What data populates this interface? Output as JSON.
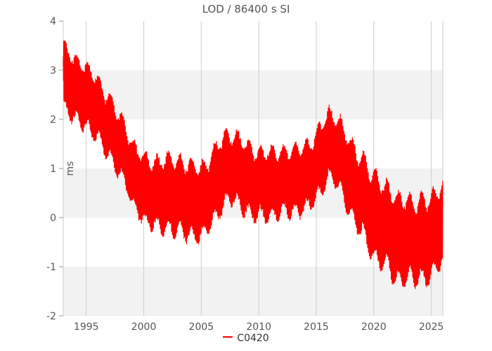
{
  "chart_data": {
    "type": "line",
    "title": "LOD / 86400 s SI",
    "xlabel": "",
    "ylabel": "ms",
    "xlim": [
      1993.0,
      2026.0
    ],
    "ylim": [
      -2,
      4
    ],
    "x_ticks": [
      1995,
      2000,
      2005,
      2010,
      2015,
      2020,
      2025
    ],
    "y_ticks": [
      -2,
      -1,
      0,
      1,
      2,
      3,
      4
    ],
    "grid": true,
    "legend_position": "bottom-center",
    "colors": {
      "series": "#ff0000",
      "band": "#f2f2f2",
      "grid": "#cccccc",
      "axis_text": "#555555"
    },
    "series": [
      {
        "name": "C0420",
        "trend": [
          [
            1993.0,
            2.9
          ],
          [
            1994.0,
            2.5
          ],
          [
            1995.0,
            2.4
          ],
          [
            1996.0,
            2.3
          ],
          [
            1997.0,
            1.9
          ],
          [
            1998.0,
            1.4
          ],
          [
            1999.0,
            0.8
          ],
          [
            2000.0,
            0.6
          ],
          [
            2001.0,
            0.6
          ],
          [
            2002.0,
            0.5
          ],
          [
            2003.0,
            0.3
          ],
          [
            2004.0,
            0.3
          ],
          [
            2005.0,
            0.4
          ],
          [
            2006.0,
            0.7
          ],
          [
            2007.0,
            0.9
          ],
          [
            2008.0,
            0.9
          ],
          [
            2009.0,
            0.8
          ],
          [
            2010.0,
            0.8
          ],
          [
            2011.0,
            0.7
          ],
          [
            2012.0,
            0.6
          ],
          [
            2013.0,
            0.7
          ],
          [
            2014.0,
            0.9
          ],
          [
            2015.0,
            1.1
          ],
          [
            2016.0,
            1.4
          ],
          [
            2017.0,
            1.2
          ],
          [
            2018.0,
            0.8
          ],
          [
            2019.0,
            0.6
          ],
          [
            2020.0,
            0.0
          ],
          [
            2021.0,
            -0.3
          ],
          [
            2022.0,
            -0.5
          ],
          [
            2023.0,
            -0.3
          ],
          [
            2024.0,
            -0.4
          ],
          [
            2025.0,
            -0.5
          ],
          [
            2026.0,
            -0.2
          ]
        ],
        "amplitude": [
          [
            1993.0,
            0.6
          ],
          [
            1998.0,
            0.55
          ],
          [
            2003.0,
            0.7
          ],
          [
            2008.0,
            0.65
          ],
          [
            2013.0,
            0.6
          ],
          [
            2017.0,
            0.65
          ],
          [
            2020.0,
            0.8
          ],
          [
            2026.0,
            0.75
          ]
        ]
      }
    ]
  }
}
